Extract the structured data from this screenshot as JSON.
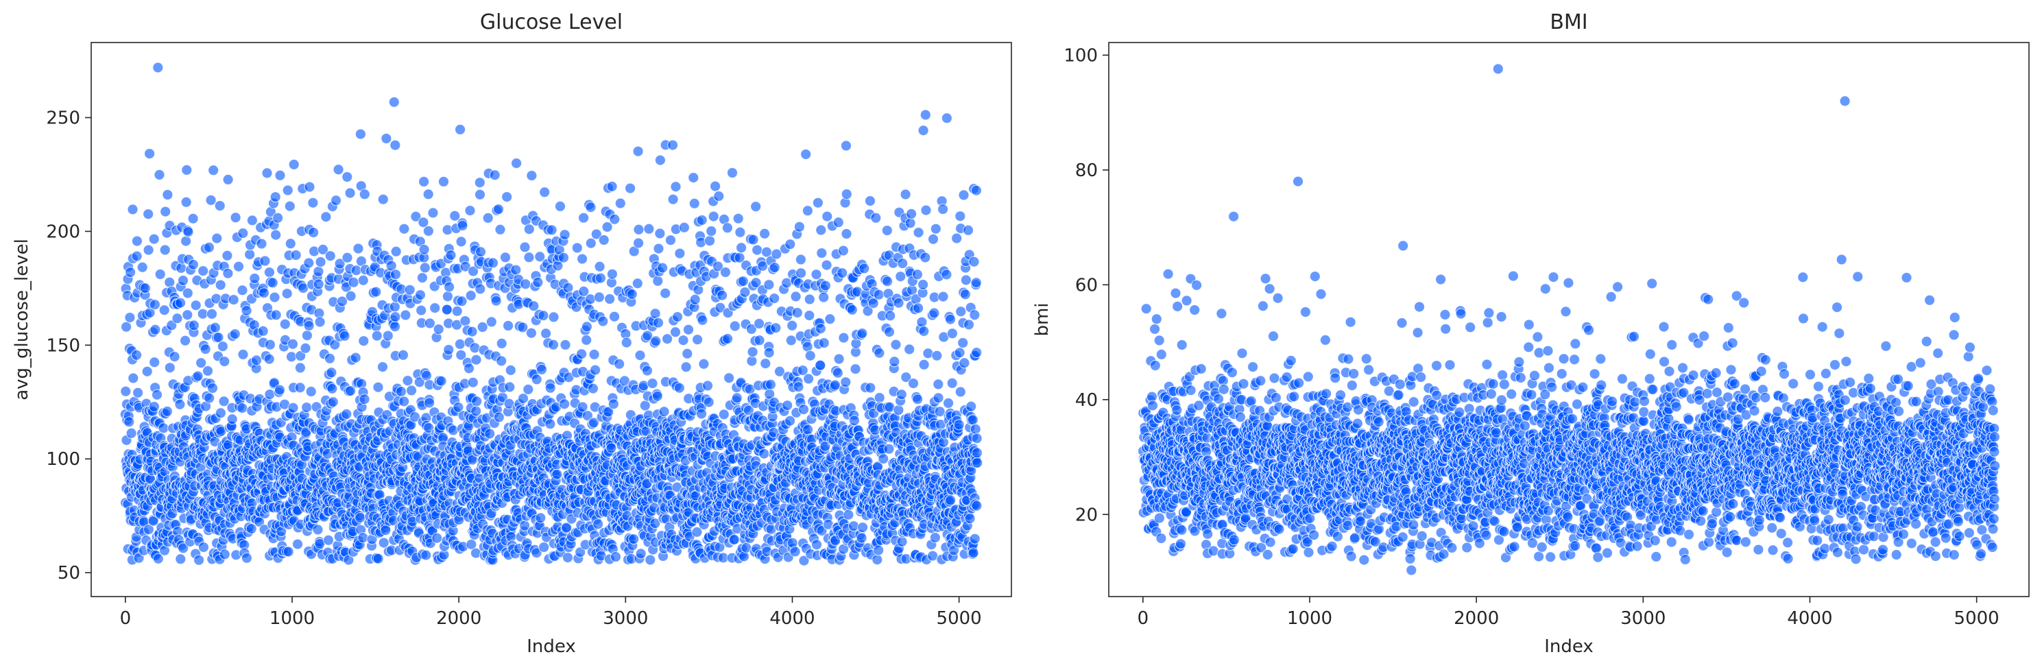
{
  "figure": {
    "background": "#ffffff"
  },
  "chart_data": [
    {
      "type": "scatter",
      "title": "Glucose Level",
      "xlabel": "Index",
      "ylabel": "avg_glucose_level",
      "xlim": [
        -205,
        5314
      ],
      "ylim": [
        39.5,
        283
      ],
      "xticks": [
        0,
        1000,
        2000,
        3000,
        4000,
        5000
      ],
      "yticks": [
        50,
        100,
        150,
        200,
        250
      ],
      "point_color": "#0055ff",
      "point_alpha": 0.6,
      "grid": false,
      "n_points": 5110,
      "distribution": {
        "dense_band": [
          55,
          130
        ],
        "sparse_band": [
          130,
          200
        ],
        "upper_cluster": [
          180,
          272
        ],
        "max_point": {
          "x": 195,
          "y": 272
        }
      },
      "series": [
        {
          "values": []
        }
      ]
    },
    {
      "type": "scatter",
      "title": "BMI",
      "xlabel": "Index",
      "ylabel": "bmi",
      "xlim": [
        -205,
        5314
      ],
      "ylim": [
        5.7,
        102.2
      ],
      "xticks": [
        0,
        1000,
        2000,
        3000,
        4000,
        5000
      ],
      "yticks": [
        20,
        40,
        60,
        80,
        100
      ],
      "point_color": "#0055ff",
      "point_alpha": 0.6,
      "grid": false,
      "n_points": 4909,
      "distribution": {
        "dense_band": [
          15,
          42
        ],
        "center": 28,
        "outliers": [
          {
            "x": 2130,
            "y": 97.6
          },
          {
            "x": 4210,
            "y": 92.0
          },
          {
            "x": 930,
            "y": 78.0
          },
          {
            "x": 544,
            "y": 71.9
          },
          {
            "x": 1560,
            "y": 66.8
          },
          {
            "x": 4190,
            "y": 64.4
          }
        ],
        "min_point": {
          "x": 1610,
          "y": 10.3
        }
      },
      "series": [
        {
          "values": []
        }
      ]
    }
  ]
}
